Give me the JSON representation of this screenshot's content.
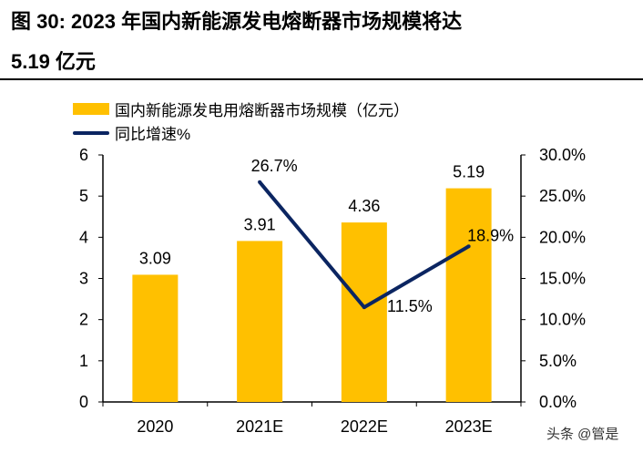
{
  "title_line1": "图 30:  2023 年国内新能源发电熔断器市场规模将达",
  "title_line2": "5.19 亿元",
  "watermark": "头条 @管是",
  "chart_data": {
    "type": "bar+line",
    "categories": [
      "2020",
      "2021E",
      "2022E",
      "2023E"
    ],
    "series": [
      {
        "name": "国内新能源发电用熔断器市场规模（亿元）",
        "type": "bar",
        "axis": "left",
        "color": "#FFC000",
        "values": [
          3.09,
          3.91,
          4.36,
          5.19
        ],
        "labels": [
          "3.09",
          "3.91",
          "4.36",
          "5.19"
        ]
      },
      {
        "name": "同比增速%",
        "type": "line",
        "axis": "right",
        "color": "#0B2561",
        "values": [
          null,
          26.7,
          11.5,
          18.9
        ],
        "labels": [
          "",
          "26.7%",
          "11.5%",
          "18.9%"
        ]
      }
    ],
    "left_axis": {
      "range": [
        0,
        6
      ],
      "ticks": [
        "0",
        "1",
        "2",
        "3",
        "4",
        "5",
        "6"
      ]
    },
    "right_axis": {
      "range": [
        0,
        30
      ],
      "ticks": [
        "0.0%",
        "5.0%",
        "10.0%",
        "15.0%",
        "20.0%",
        "25.0%",
        "30.0%"
      ]
    },
    "legend_position": "top",
    "grid": false
  }
}
